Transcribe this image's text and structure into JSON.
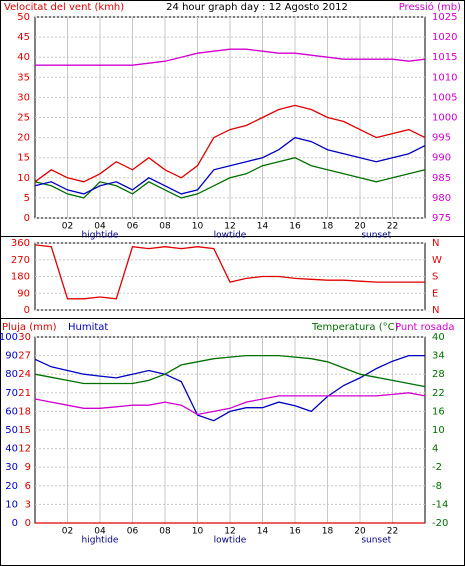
{
  "chart_data": [
    {
      "type": "line",
      "title": "24 hour graph day : 12 Agosto 2012",
      "ylabel": "Velocitat del vent (kmh)",
      "y2label": "Pressió (mb)",
      "ytick_color": "#e00000",
      "y2tick_color": "#d000d0",
      "grid": true,
      "x": [
        0,
        1,
        2,
        3,
        4,
        5,
        6,
        7,
        8,
        9,
        10,
        11,
        12,
        13,
        14,
        15,
        16,
        17,
        18,
        19,
        20,
        21,
        22,
        23,
        24
      ],
      "xlim": [
        0,
        24
      ],
      "xticks": [
        {
          "value": 2,
          "label": "02"
        },
        {
          "value": 4,
          "label": "04"
        },
        {
          "value": 6,
          "label": "06"
        },
        {
          "value": 8,
          "label": "08"
        },
        {
          "value": 10,
          "label": "10"
        },
        {
          "value": 12,
          "label": "12"
        },
        {
          "value": 14,
          "label": "14"
        },
        {
          "value": 16,
          "label": "16"
        },
        {
          "value": 18,
          "label": "18"
        },
        {
          "value": 20,
          "label": "20"
        },
        {
          "value": 22,
          "label": "22"
        }
      ],
      "annotations": [
        {
          "x": 4,
          "text": "hightide"
        },
        {
          "x": 12,
          "text": "lowtide"
        },
        {
          "x": 21,
          "text": "sunset"
        }
      ],
      "ylim": [
        0,
        50
      ],
      "yticks": [
        0,
        5,
        10,
        15,
        20,
        25,
        30,
        35,
        40,
        45,
        50
      ],
      "y2lim": [
        975,
        1025
      ],
      "y2ticks": [
        975,
        980,
        985,
        990,
        995,
        1000,
        1005,
        1010,
        1015,
        1020,
        1025
      ],
      "series": [
        {
          "color": "#e00000",
          "values": [
            9,
            12,
            10,
            9,
            11,
            14,
            12,
            15,
            12,
            10,
            13,
            20,
            22,
            23,
            25,
            27,
            28,
            27,
            25,
            24,
            22,
            20,
            21,
            22,
            20
          ]
        },
        {
          "color": "#007000",
          "values": [
            9,
            8,
            6,
            5,
            9,
            8,
            6,
            9,
            7,
            5,
            6,
            8,
            10,
            11,
            13,
            14,
            15,
            13,
            12,
            11,
            10,
            9,
            10,
            11,
            12
          ]
        },
        {
          "color": "#0000c0",
          "values": [
            8,
            9,
            7,
            6,
            8,
            9,
            7,
            10,
            8,
            6,
            7,
            12,
            13,
            14,
            15,
            17,
            20,
            19,
            17,
            16,
            15,
            14,
            15,
            16,
            18
          ]
        },
        {
          "color": "#d000d0",
          "axis": "y2",
          "values": [
            1013,
            1013,
            1013,
            1013,
            1013,
            1013,
            1013,
            1013.5,
            1014,
            1015,
            1016,
            1016.5,
            1017,
            1017,
            1016.5,
            1016,
            1016,
            1015.5,
            1015,
            1014.5,
            1014.5,
            1014.5,
            1014.5,
            1014,
            1014.5
          ]
        }
      ]
    },
    {
      "type": "line",
      "ytick_color": "#e00000",
      "y2tick_color": "#e00000",
      "grid": true,
      "x": [
        0,
        1,
        2,
        3,
        4,
        5,
        6,
        7,
        8,
        9,
        10,
        11,
        12,
        13,
        14,
        15,
        16,
        17,
        18,
        19,
        20,
        21,
        22,
        23,
        24
      ],
      "xlim": [
        0,
        24
      ],
      "ylim": [
        0,
        360
      ],
      "yticks": [
        0,
        90,
        180,
        270,
        360
      ],
      "y2lim": [
        0,
        360
      ],
      "y2ticks": [
        {
          "value": 360,
          "label": "N"
        },
        {
          "value": 270,
          "label": "W"
        },
        {
          "value": 180,
          "label": "S"
        },
        {
          "value": 90,
          "label": "E"
        },
        {
          "value": 0,
          "label": "N"
        }
      ],
      "series": [
        {
          "color": "#e00000",
          "values": [
            350,
            340,
            60,
            60,
            70,
            60,
            340,
            330,
            340,
            330,
            340,
            330,
            150,
            170,
            180,
            180,
            170,
            165,
            160,
            160,
            155,
            150,
            150,
            150,
            150
          ]
        }
      ]
    },
    {
      "type": "line",
      "ytick_color": "#0000c0",
      "y2tick_color": "#007000",
      "y3tick_color": "#e00000",
      "grid": true,
      "x": [
        0,
        1,
        2,
        3,
        4,
        5,
        6,
        7,
        8,
        9,
        10,
        11,
        12,
        13,
        14,
        15,
        16,
        17,
        18,
        19,
        20,
        21,
        22,
        23,
        24
      ],
      "xlim": [
        0,
        24
      ],
      "xticks": [
        {
          "value": 2,
          "label": "02"
        },
        {
          "value": 4,
          "label": "04"
        },
        {
          "value": 6,
          "label": "06"
        },
        {
          "value": 8,
          "label": "08"
        },
        {
          "value": 10,
          "label": "10"
        },
        {
          "value": 12,
          "label": "12"
        },
        {
          "value": 14,
          "label": "14"
        },
        {
          "value": 16,
          "label": "16"
        },
        {
          "value": 18,
          "label": "18"
        },
        {
          "value": 20,
          "label": "20"
        },
        {
          "value": 22,
          "label": "22"
        }
      ],
      "annotations": [
        {
          "x": 4,
          "text": "hightide"
        },
        {
          "x": 12,
          "text": "lowtide"
        },
        {
          "x": 21,
          "text": "sunset"
        }
      ],
      "ylim": [
        0,
        100
      ],
      "yticks": [
        0,
        10,
        20,
        30,
        40,
        50,
        60,
        70,
        80,
        90,
        100
      ],
      "y3lim": [
        0,
        30
      ],
      "y3ticks": [
        0,
        3,
        6,
        9,
        12,
        15,
        18,
        21,
        24,
        27,
        30
      ],
      "y2lim": [
        -20,
        40
      ],
      "y2ticks": [
        -20,
        -14,
        -8,
        -2,
        4,
        10,
        16,
        22,
        28,
        34,
        40
      ],
      "series": [
        {
          "name": "Pluja (mm)",
          "color": "#e00000",
          "axis": "y3",
          "values": [
            0,
            0,
            0,
            0,
            0,
            0,
            0,
            0,
            0,
            0,
            0,
            0,
            0,
            0,
            0,
            0,
            0,
            0,
            0,
            0,
            0,
            0,
            0,
            0,
            0
          ]
        },
        {
          "name": "Humitat",
          "color": "#0000c0",
          "values": [
            88,
            84,
            82,
            80,
            79,
            78,
            80,
            82,
            80,
            76,
            58,
            55,
            60,
            62,
            62,
            65,
            63,
            60,
            68,
            74,
            78,
            83,
            87,
            90,
            90
          ]
        },
        {
          "name": "Temperatura (°C)",
          "color": "#007000",
          "axis": "y2",
          "values": [
            28,
            27,
            26,
            25,
            25,
            25,
            25,
            26,
            28,
            31,
            32,
            33,
            33.5,
            34,
            34,
            34,
            33.5,
            33,
            32,
            30,
            28,
            27,
            26,
            25,
            24
          ]
        },
        {
          "name": "Punt rosada",
          "color": "#d000d0",
          "axis": "y2",
          "values": [
            20,
            19,
            18,
            17,
            17,
            17.5,
            18,
            18,
            19,
            18,
            15,
            16,
            17,
            19,
            20,
            21,
            21,
            21,
            21,
            21,
            21,
            21,
            21.5,
            22,
            21
          ]
        }
      ]
    }
  ]
}
